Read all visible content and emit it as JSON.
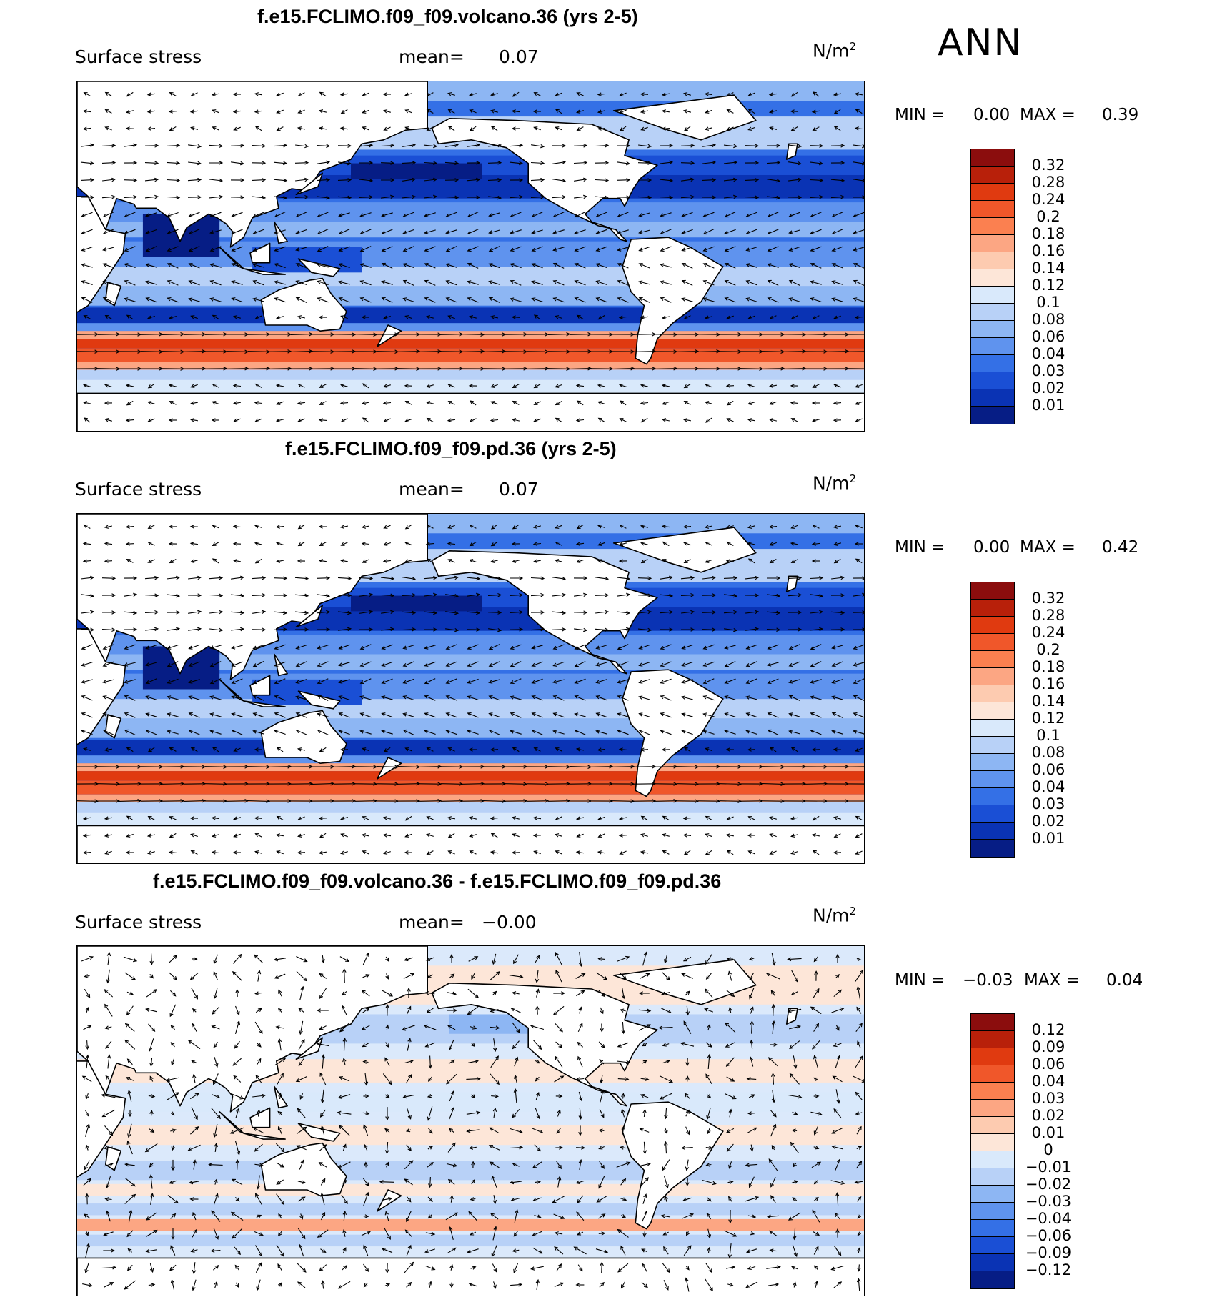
{
  "season": "ANN",
  "panels": [
    {
      "title": "f.e15.FCLIMO.f09_f09.volcano.36 (yrs 2-5)",
      "variable": "Surface stress",
      "mean_label": "mean=",
      "mean_value": "0.07",
      "units_base": "N/m",
      "units_exp": "2",
      "min_label": "MIN =",
      "min_value": "0.00",
      "max_label": "MAX =",
      "max_value": "0.39",
      "colorbar": {
        "levels": [
          "0.32",
          "0.28",
          "0.24",
          "0.2",
          "0.18",
          "0.16",
          "0.14",
          "0.12",
          "0.1",
          "0.08",
          "0.06",
          "0.04",
          "0.03",
          "0.02",
          "0.01"
        ],
        "colors": [
          "#8b0d0d",
          "#b8200a",
          "#e03a10",
          "#f0572a",
          "#fb8050",
          "#fca683",
          "#fdcbb0",
          "#fde6d8",
          "#d9e9fb",
          "#b8d1f7",
          "#8db6f3",
          "#5f93ee",
          "#3470e6",
          "#1a4fd5",
          "#0a33b4",
          "#061d85"
        ]
      }
    },
    {
      "title": "f.e15.FCLIMO.f09_f09.pd.36 (yrs 2-5)",
      "variable": "Surface stress",
      "mean_label": "mean=",
      "mean_value": "0.07",
      "units_base": "N/m",
      "units_exp": "2",
      "min_label": "MIN =",
      "min_value": "0.00",
      "max_label": "MAX =",
      "max_value": "0.42",
      "colorbar": {
        "levels": [
          "0.32",
          "0.28",
          "0.24",
          "0.2",
          "0.18",
          "0.16",
          "0.14",
          "0.12",
          "0.1",
          "0.08",
          "0.06",
          "0.04",
          "0.03",
          "0.02",
          "0.01"
        ],
        "colors": [
          "#8b0d0d",
          "#b8200a",
          "#e03a10",
          "#f0572a",
          "#fb8050",
          "#fca683",
          "#fdcbb0",
          "#fde6d8",
          "#d9e9fb",
          "#b8d1f7",
          "#8db6f3",
          "#5f93ee",
          "#3470e6",
          "#1a4fd5",
          "#0a33b4",
          "#061d85"
        ]
      }
    },
    {
      "title": "f.e15.FCLIMO.f09_f09.volcano.36 - f.e15.FCLIMO.f09_f09.pd.36",
      "variable": "Surface stress",
      "mean_label": "mean=",
      "mean_value": "−0.00",
      "units_base": "N/m",
      "units_exp": "2",
      "min_label": "MIN =",
      "min_value": "−0.03",
      "max_label": "MAX =",
      "max_value": "0.04",
      "colorbar": {
        "levels": [
          "0.12",
          "0.09",
          "0.06",
          "0.04",
          "0.03",
          "0.02",
          "0.01",
          "0",
          "−0.01",
          "−0.02",
          "−0.03",
          "−0.04",
          "−0.06",
          "−0.09",
          "−0.12"
        ],
        "colors": [
          "#8b0d0d",
          "#b8200a",
          "#e03a10",
          "#f0572a",
          "#fb8050",
          "#fca683",
          "#fdcbb0",
          "#fde6d8",
          "#d9e9fb",
          "#b8d1f7",
          "#8db6f3",
          "#5f93ee",
          "#3470e6",
          "#1a4fd5",
          "#0a33b4",
          "#061d85"
        ]
      }
    }
  ]
}
